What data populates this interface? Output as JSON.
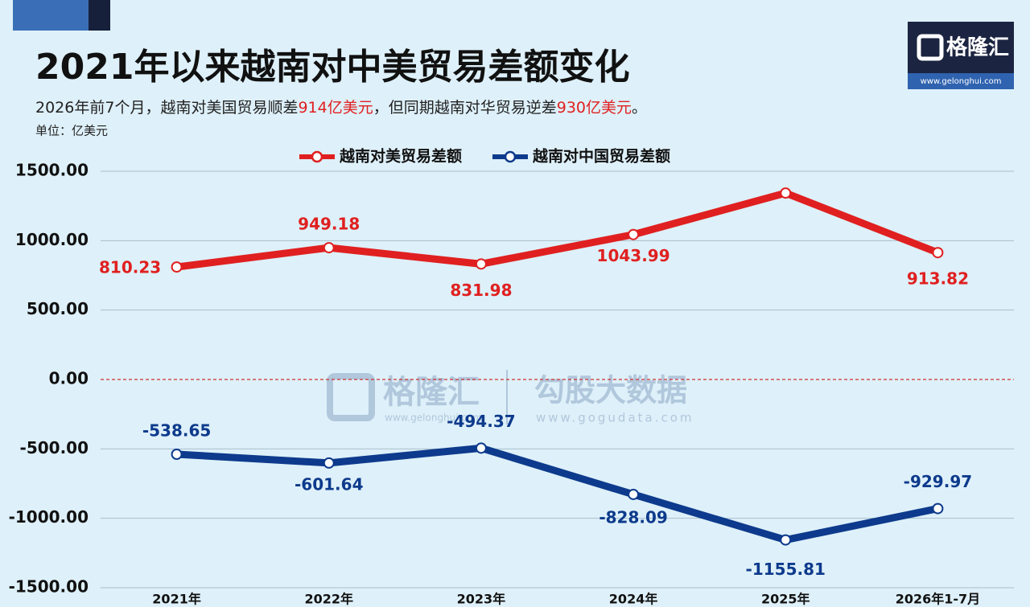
{
  "chart_data": {
    "type": "line",
    "title": "2021年以来越南对中美贸易差额变化",
    "subtitle": [
      "2026年前7个月，越南对美国贸易顺差",
      "914亿美元",
      "，但同期越南对华贸易逆差",
      "930亿美元",
      "。"
    ],
    "unit": "单位：亿美元",
    "categories": [
      "2021年",
      "2022年",
      "2023年",
      "2024年",
      "2025年",
      "2026年1-7月"
    ],
    "series": [
      {
        "name": "越南对美贸易差额",
        "color": "#e02020",
        "values": [
          810.23,
          949.18,
          831.98,
          1043.99,
          1343,
          913.82
        ],
        "value_labels": [
          "810.23",
          "949.18",
          "831.98",
          "1043.99",
          null,
          "913.82"
        ]
      },
      {
        "name": "越南对中国贸易差额",
        "color": "#0d3a8c",
        "values": [
          -538.65,
          -601.64,
          -494.37,
          -828.09,
          -1155.81,
          -929.97
        ]
      }
    ],
    "ylim": [
      -1500,
      1500
    ],
    "yticks": [
      {
        "value": 1500,
        "label": "1500.00"
      },
      {
        "value": 1000,
        "label": "1000.00"
      },
      {
        "value": 500,
        "label": "500.00"
      },
      {
        "value": 0,
        "label": "0.00"
      },
      {
        "value": -500,
        "label": "-500.00"
      },
      {
        "value": -1000,
        "label": "-1000.00"
      },
      {
        "value": -1500,
        "label": "-1500.00"
      }
    ],
    "grid": true
  },
  "logo": {
    "name": "格隆汇",
    "url": "www.gelonghui.com"
  },
  "watermark": {
    "brand": "格隆汇",
    "brand_url": "www.gelonghui.com",
    "name": "勾股大数据",
    "url": "www.gogudata.com"
  }
}
